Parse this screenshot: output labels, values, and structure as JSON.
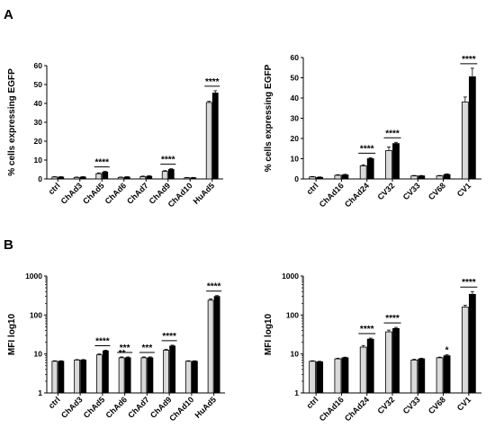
{
  "panel_labels": {
    "top": "A",
    "bottom": "B"
  },
  "colors": {
    "ctrl_bar": "#d9d9d9",
    "treated_bar": "#000000",
    "axis": "#000000"
  },
  "chart_data": [
    {
      "type": "bar",
      "ylabel": "% cells expressing EGFP",
      "ylim": [
        0,
        60
      ],
      "yticks": [
        0,
        10,
        20,
        30,
        40,
        50,
        60
      ],
      "categories": [
        "ctrl",
        "ChAd3",
        "ChAd5",
        "ChAd6",
        "ChAd7",
        "ChAd9",
        "ChAd10",
        "HuAd5"
      ],
      "series": [
        {
          "values": [
            1,
            0.8,
            2.8,
            0.8,
            1.2,
            4,
            0.6,
            40.5
          ],
          "errors": [
            0.2,
            0.2,
            0.4,
            0.2,
            0.3,
            0.4,
            0.2,
            0.6
          ]
        },
        {
          "values": [
            1,
            1,
            3.6,
            1,
            1.4,
            5,
            0.6,
            45.5
          ],
          "errors": [
            0.2,
            0.2,
            0.4,
            0.2,
            0.3,
            0.4,
            0.2,
            1.2
          ]
        }
      ],
      "significance": [
        {
          "index": 2,
          "label": "****"
        },
        {
          "index": 5,
          "label": "****"
        },
        {
          "index": 7,
          "label": "****"
        }
      ]
    },
    {
      "type": "bar",
      "ylabel": "% cells expressing EGFP",
      "ylim": [
        0,
        60
      ],
      "yticks": [
        0,
        10,
        20,
        30,
        40,
        50,
        60
      ],
      "categories": [
        "ctrl",
        "ChAd16",
        "ChAd24",
        "CV32",
        "CV33",
        "CV68",
        "CV1"
      ],
      "series": [
        {
          "values": [
            1,
            1.8,
            6.5,
            14,
            1.5,
            1.5,
            38
          ],
          "errors": [
            0.2,
            0.3,
            0.5,
            1.8,
            0.2,
            0.2,
            2.5
          ]
        },
        {
          "values": [
            0.8,
            2,
            10,
            17.5,
            1.5,
            2.2,
            50.5
          ],
          "errors": [
            0.2,
            0.3,
            0.5,
            0.6,
            0.2,
            0.3,
            4.2
          ]
        }
      ],
      "significance": [
        {
          "index": 2,
          "label": "****"
        },
        {
          "index": 3,
          "label": "****"
        },
        {
          "index": 6,
          "label": "****"
        }
      ]
    },
    {
      "type": "bar",
      "ylabel": "MFI log10",
      "scale": "log",
      "ylim": [
        1,
        1000
      ],
      "yticks": [
        1,
        10,
        100,
        1000
      ],
      "categories": [
        "ctrl",
        "ChAd3",
        "ChAd5",
        "ChAd6",
        "ChAd7",
        "ChAd9",
        "ChAd10",
        "HuAd5"
      ],
      "series": [
        {
          "values": [
            6.5,
            7,
            9.5,
            8,
            8,
            12.5,
            6.5,
            240
          ],
          "errors": [
            0.2,
            0.2,
            0.5,
            0.4,
            0.4,
            0.6,
            0.2,
            18
          ]
        },
        {
          "values": [
            6.5,
            7,
            12,
            8,
            8,
            16,
            6.5,
            300
          ],
          "errors": [
            0.2,
            0.2,
            0.5,
            0.4,
            0.4,
            0.8,
            0.2,
            15
          ]
        }
      ],
      "significance": [
        {
          "index": 2,
          "label": "****"
        },
        {
          "index": 3,
          "label": "***"
        },
        {
          "index": 3,
          "label": "**",
          "position": "left-low"
        },
        {
          "index": 4,
          "label": "***"
        },
        {
          "index": 5,
          "label": "****"
        },
        {
          "index": 7,
          "label": "****"
        }
      ]
    },
    {
      "type": "bar",
      "ylabel": "MFI log10",
      "scale": "log",
      "ylim": [
        1,
        1000
      ],
      "yticks": [
        1,
        10,
        100,
        1000
      ],
      "categories": [
        "ctrl",
        "ChAd16",
        "ChAd24",
        "CV32",
        "CV33",
        "CV68",
        "CV1"
      ],
      "series": [
        {
          "values": [
            6.5,
            7.5,
            15,
            37,
            7,
            8,
            160
          ],
          "errors": [
            0.2,
            0.3,
            1.5,
            4,
            0.3,
            0.3,
            18
          ]
        },
        {
          "values": [
            6.3,
            8,
            24,
            45,
            7.5,
            9,
            340
          ],
          "errors": [
            0.2,
            0.3,
            1.5,
            3,
            0.3,
            0.5,
            60
          ]
        }
      ],
      "significance": [
        {
          "index": 2,
          "label": "****"
        },
        {
          "index": 3,
          "label": "****"
        },
        {
          "index": 5,
          "label": "*",
          "position": "above-treated"
        },
        {
          "index": 6,
          "label": "****"
        }
      ]
    }
  ]
}
